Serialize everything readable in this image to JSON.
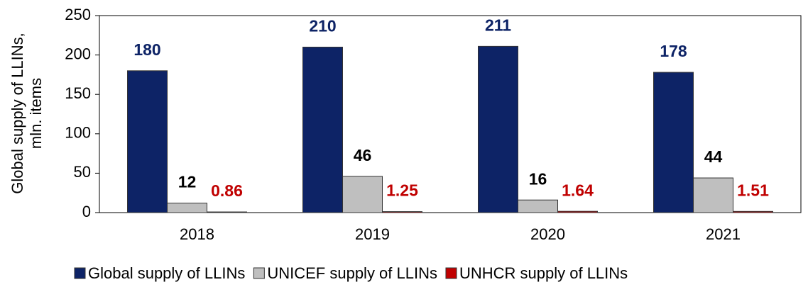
{
  "chart_data": {
    "type": "bar",
    "y_label": [
      "Global supply of LLINs,",
      "mln. items"
    ],
    "categories": [
      "2018",
      "2019",
      "2020",
      "2021"
    ],
    "series": [
      {
        "name": "Global supply of LLINs",
        "color": "#0d2366",
        "label_color": "#0d2366",
        "values": [
          180,
          210,
          211,
          178
        ]
      },
      {
        "name": "UNICEF supply of LLINs",
        "color": "#bfbfbf",
        "label_color": "#000000",
        "values": [
          12,
          46,
          16,
          44
        ]
      },
      {
        "name": "UNHCR supply of LLINs",
        "color": "#c00000",
        "label_color": "#c00000",
        "values": [
          0.86,
          1.25,
          1.64,
          1.51
        ]
      }
    ],
    "ylim": [
      0,
      250
    ],
    "yticks": [
      0,
      50,
      100,
      150,
      200,
      250
    ],
    "grid": false,
    "legend": "bottom"
  }
}
